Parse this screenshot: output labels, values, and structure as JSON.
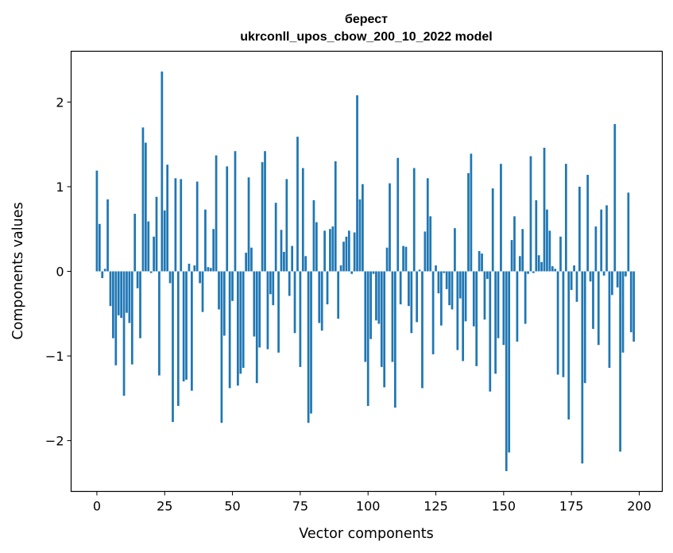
{
  "chart_data": {
    "type": "bar",
    "title_line1": "берест",
    "title_line2": "ukrconll_upos_cbow_200_10_2022 model",
    "xlabel": "Vector components",
    "ylabel": "Components values",
    "xlim": [
      -9.5,
      208.5
    ],
    "ylim": [
      -2.6,
      2.6
    ],
    "x_ticks": [
      0,
      25,
      50,
      75,
      100,
      125,
      150,
      175,
      200
    ],
    "x_tick_labels": [
      "0",
      "25",
      "50",
      "75",
      "100",
      "125",
      "150",
      "175",
      "200"
    ],
    "y_ticks": [
      -2,
      -1,
      0,
      1,
      2
    ],
    "y_tick_labels": [
      "−2",
      "−1",
      "0",
      "1",
      "2"
    ],
    "bar_color": "#1f77b4",
    "values": [
      1.19,
      0.56,
      -0.08,
      0.03,
      0.85,
      -0.41,
      -0.79,
      -1.11,
      -0.52,
      -0.55,
      -1.47,
      -0.49,
      -0.61,
      -1.1,
      0.68,
      -0.2,
      -0.79,
      1.7,
      1.52,
      0.59,
      -0.02,
      0.41,
      0.88,
      -1.23,
      2.36,
      0.72,
      1.26,
      -0.14,
      -1.78,
      1.1,
      -1.59,
      1.09,
      -1.3,
      -1.28,
      0.09,
      -1.41,
      0.07,
      1.06,
      -0.14,
      -0.48,
      0.73,
      0.05,
      0.04,
      0.5,
      1.37,
      -0.45,
      -1.79,
      -0.76,
      1.24,
      -1.38,
      -0.35,
      1.42,
      -1.35,
      -1.21,
      -1.14,
      0.22,
      1.11,
      0.28,
      -0.77,
      -1.32,
      -0.9,
      1.29,
      1.42,
      -0.92,
      -0.27,
      -0.4,
      0.81,
      -0.96,
      0.49,
      0.23,
      1.09,
      -0.29,
      0.3,
      -0.73,
      1.59,
      -1.13,
      1.22,
      0.18,
      -1.79,
      -1.68,
      0.84,
      0.58,
      -0.61,
      -0.7,
      0.48,
      -0.39,
      0.5,
      0.53,
      1.3,
      -0.56,
      0.07,
      0.35,
      0.41,
      0.48,
      -0.03,
      0.46,
      2.08,
      0.85,
      1.03,
      -1.07,
      -1.59,
      -0.8,
      -0.03,
      -0.58,
      -0.62,
      -1.13,
      -1.37,
      0.28,
      1.04,
      -1.07,
      -1.61,
      1.34,
      -0.39,
      0.3,
      0.29,
      -0.41,
      -0.73,
      1.22,
      -0.6,
      0.02,
      -1.38,
      0.47,
      1.1,
      0.65,
      -0.98,
      0.07,
      -0.26,
      -0.64,
      -0.02,
      -0.21,
      -0.4,
      -0.45,
      0.51,
      -0.93,
      -0.32,
      -1.06,
      -0.59,
      1.16,
      1.39,
      -0.65,
      -1.12,
      0.24,
      0.21,
      -0.57,
      -0.09,
      -1.42,
      0.98,
      -1.21,
      -0.79,
      1.27,
      -0.87,
      -2.36,
      -2.14,
      0.37,
      0.65,
      -0.83,
      0.18,
      0.5,
      -0.62,
      -0.03,
      1.36,
      -0.02,
      0.84,
      0.19,
      0.11,
      1.46,
      0.73,
      0.48,
      0.06,
      0.03,
      -1.22,
      0.41,
      -1.25,
      1.27,
      -1.75,
      -0.22,
      0.07,
      -0.36,
      1.0,
      -2.27,
      -1.32,
      1.14,
      -0.12,
      -0.68,
      0.53,
      -0.87,
      0.73,
      -0.05,
      0.78,
      -1.14,
      -0.28,
      1.74,
      -0.19,
      -2.13,
      -0.96,
      -0.06,
      0.93,
      -0.72,
      -0.83
    ]
  }
}
